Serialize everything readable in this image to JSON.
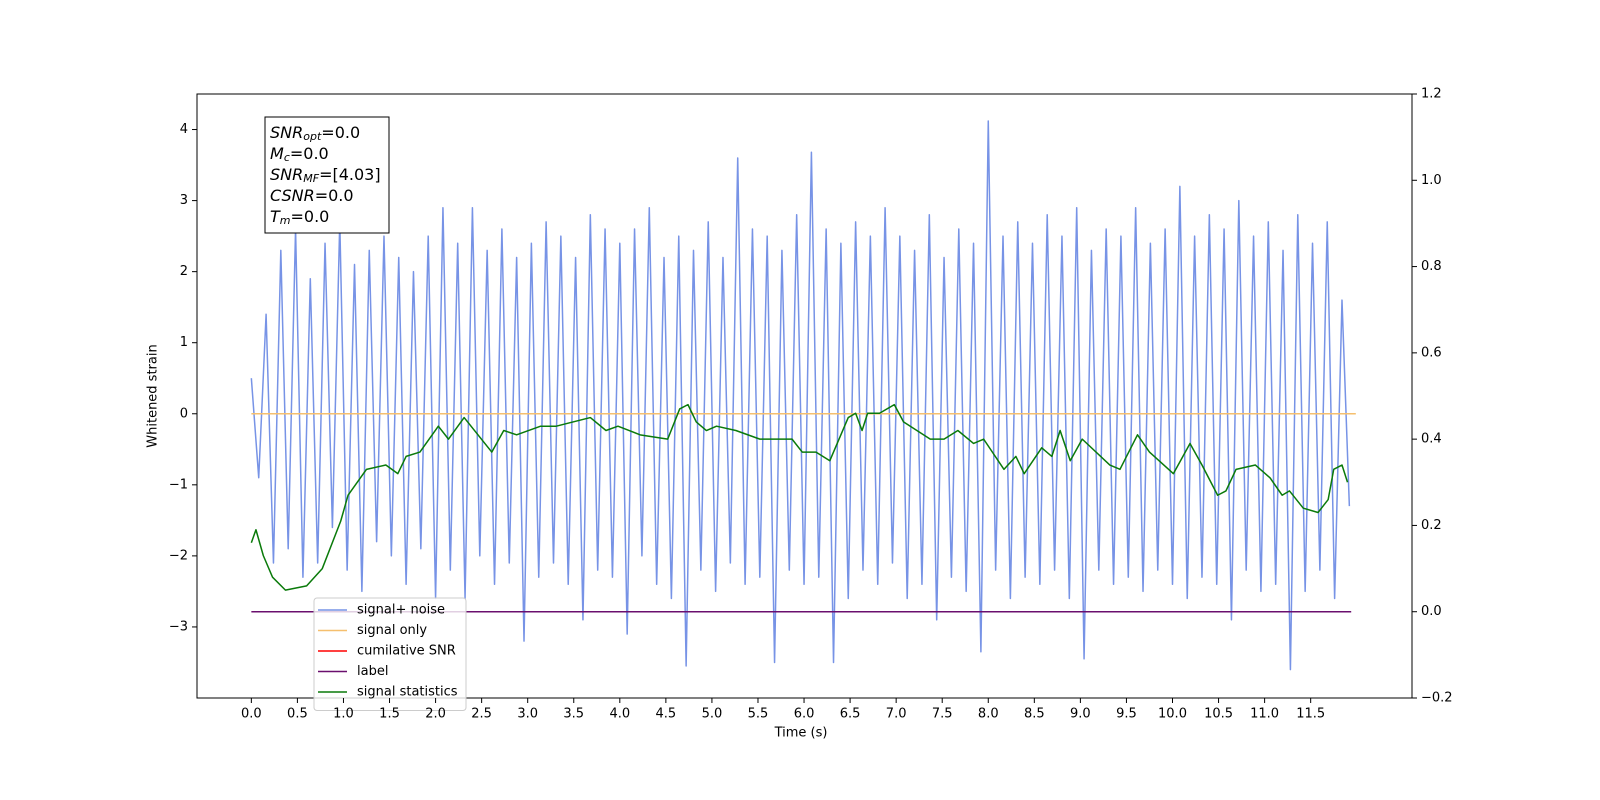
{
  "chart_data": {
    "type": "line",
    "xlabel": "Time (s)",
    "ylabel": "Whitened strain",
    "xlim": [
      -0.59,
      12.6
    ],
    "ylim": [
      -4.0,
      4.5
    ],
    "y2lim": [
      -0.2,
      1.2
    ],
    "xticks": [
      {
        "value": 0,
        "label": "0.0"
      },
      {
        "value": 0.5,
        "label": "0.5"
      },
      {
        "value": 1,
        "label": "1.0"
      },
      {
        "value": 1.5,
        "label": "1.5"
      },
      {
        "value": 2,
        "label": "2.0"
      },
      {
        "value": 2.5,
        "label": "2.5"
      },
      {
        "value": 3,
        "label": "3.0"
      },
      {
        "value": 3.5,
        "label": "3.5"
      },
      {
        "value": 4,
        "label": "4.0"
      },
      {
        "value": 4.5,
        "label": "4.5"
      },
      {
        "value": 5,
        "label": "5.0"
      },
      {
        "value": 5.5,
        "label": "5.5"
      },
      {
        "value": 6,
        "label": "6.0"
      },
      {
        "value": 6.5,
        "label": "6.5"
      },
      {
        "value": 7,
        "label": "7.0"
      },
      {
        "value": 7.5,
        "label": "7.5"
      },
      {
        "value": 8,
        "label": "8.0"
      },
      {
        "value": 8.5,
        "label": "8.5"
      },
      {
        "value": 9,
        "label": "9.0"
      },
      {
        "value": 9.5,
        "label": "9.5"
      },
      {
        "value": 10,
        "label": "10.0"
      },
      {
        "value": 10.5,
        "label": "10.5"
      },
      {
        "value": 11,
        "label": "11.0"
      },
      {
        "value": 11.5,
        "label": "11.5"
      }
    ],
    "yticks": [
      {
        "value": -3,
        "label": "−3"
      },
      {
        "value": -2,
        "label": "−2"
      },
      {
        "value": -1,
        "label": "−1"
      },
      0,
      1,
      2,
      3,
      4
    ],
    "y2ticks": [
      {
        "value": -0.2,
        "label": "−0.2"
      },
      {
        "value": 0,
        "label": "0.0"
      },
      {
        "value": 0.2,
        "label": "0.2"
      },
      {
        "value": 0.4,
        "label": "0.4"
      },
      {
        "value": 0.6,
        "label": "0.6"
      },
      {
        "value": 0.8,
        "label": "0.8"
      },
      {
        "value": 1,
        "label": "1.0"
      },
      {
        "value": 1.2,
        "label": "1.2"
      }
    ],
    "grid": false,
    "legend": "lower left",
    "annotation": [
      {
        "symbol": "SNR",
        "subscript": "opt",
        "text": "=0.0"
      },
      {
        "symbol": "M",
        "subscript": "c",
        "text": "=0.0"
      },
      {
        "symbol": "SNR",
        "subscript": "MF",
        "text": "=[4.03]"
      },
      {
        "symbol": "CSNR",
        "text": "=0.0"
      },
      {
        "symbol": "T",
        "subscript": "m",
        "text": "=0.0"
      }
    ],
    "series": [
      {
        "name": "signal+ noise",
        "color": "#7793e6",
        "x": [
          0,
          0.08,
          0.16,
          0.24,
          0.32,
          0.4,
          0.48,
          0.56,
          0.64,
          0.72,
          0.8,
          0.88,
          0.96,
          1.04,
          1.12,
          1.2,
          1.28,
          1.36,
          1.44,
          1.52,
          1.6,
          1.68,
          1.76,
          1.84,
          1.92,
          2,
          2.08,
          2.16,
          2.24,
          2.32,
          2.4,
          2.48,
          2.56,
          2.64,
          2.72,
          2.8,
          2.88,
          2.96,
          3.04,
          3.12,
          3.2,
          3.28,
          3.36,
          3.44,
          3.52,
          3.6,
          3.68,
          3.76,
          3.84,
          3.92,
          4,
          4.08,
          4.16,
          4.24,
          4.32,
          4.4,
          4.48,
          4.56,
          4.64,
          4.72,
          4.8,
          4.88,
          4.96,
          5.04,
          5.12,
          5.2,
          5.28,
          5.36,
          5.44,
          5.52,
          5.6,
          5.68,
          5.76,
          5.84,
          5.92,
          6,
          6.08,
          6.16,
          6.24,
          6.32,
          6.4,
          6.48,
          6.56,
          6.64,
          6.72,
          6.8,
          6.88,
          6.96,
          7.04,
          7.12,
          7.2,
          7.28,
          7.36,
          7.44,
          7.52,
          7.6,
          7.68,
          7.76,
          7.84,
          7.92,
          8,
          8.08,
          8.16,
          8.24,
          8.32,
          8.4,
          8.48,
          8.56,
          8.64,
          8.72,
          8.8,
          8.88,
          8.96,
          9.04,
          9.12,
          9.2,
          9.28,
          9.36,
          9.44,
          9.52,
          9.6,
          9.68,
          9.76,
          9.84,
          9.92,
          10,
          10.08,
          10.16,
          10.24,
          10.32,
          10.4,
          10.48,
          10.56,
          10.64,
          10.72,
          10.8,
          10.88,
          10.96,
          11.04,
          11.12,
          11.2,
          11.28,
          11.36,
          11.44,
          11.52,
          11.6,
          11.68,
          11.76,
          11.84,
          11.92
        ],
        "values": [
          0.5,
          -0.9,
          1.4,
          -2.1,
          2.3,
          -1.9,
          2.6,
          -2.3,
          1.9,
          -2.1,
          2.4,
          -1.6,
          2.7,
          -2.2,
          2.1,
          -2.5,
          2.3,
          -1.8,
          2.5,
          -2.0,
          2.2,
          -2.4,
          2.0,
          -1.9,
          2.5,
          -2.6,
          2.9,
          -2.2,
          2.4,
          -2.6,
          2.9,
          -2.0,
          2.3,
          -2.4,
          2.6,
          -2.1,
          2.2,
          -3.2,
          2.4,
          -2.3,
          2.7,
          -2.1,
          2.5,
          -2.4,
          2.2,
          -2.9,
          2.8,
          -2.2,
          2.6,
          -2.3,
          2.4,
          -3.1,
          2.6,
          -2.0,
          2.9,
          -2.4,
          2.2,
          -2.6,
          2.5,
          -3.55,
          2.3,
          -2.2,
          2.7,
          -2.5,
          2.2,
          -2.1,
          3.6,
          -2.4,
          2.6,
          -2.3,
          2.5,
          -3.5,
          2.3,
          -2.2,
          2.8,
          -2.4,
          3.68,
          -2.3,
          2.6,
          -3.5,
          2.4,
          -2.6,
          2.7,
          -2.2,
          2.5,
          -2.4,
          2.9,
          -2.1,
          2.5,
          -2.6,
          2.3,
          -2.4,
          2.8,
          -2.9,
          2.2,
          -2.3,
          2.6,
          -2.5,
          2.4,
          -3.35,
          4.12,
          -2.2,
          2.5,
          -2.6,
          2.7,
          -2.3,
          2.4,
          -2.4,
          2.8,
          -2.2,
          2.5,
          -2.6,
          2.9,
          -3.45,
          2.3,
          -2.2,
          2.6,
          -2.4,
          2.5,
          -2.3,
          2.9,
          -2.5,
          2.4,
          -2.2,
          2.6,
          -2.4,
          3.2,
          -2.6,
          2.5,
          -2.3,
          2.8,
          -2.4,
          2.6,
          -2.9,
          3.0,
          -2.2,
          2.5,
          -2.5,
          2.7,
          -2.4,
          2.3,
          -3.6,
          2.8,
          -2.5,
          2.4,
          -2.2,
          2.7,
          -2.6,
          1.6,
          -1.3
        ]
      },
      {
        "name": "signal only",
        "color": "#f5bf6e",
        "x": [
          0,
          11.99
        ],
        "values": [
          0,
          0
        ]
      },
      {
        "name": "cumilative SNR",
        "color": "#ff0000",
        "x": [],
        "values": []
      },
      {
        "name": "label",
        "color": "#6a0f6e",
        "axis": "y2",
        "x": [
          0,
          11.94
        ],
        "values": [
          0,
          0
        ]
      },
      {
        "name": "signal statistics",
        "color": "#0a7a0a",
        "axis": "y2",
        "x": [
          0,
          0.05,
          0.13,
          0.23,
          0.37,
          0.6,
          0.77,
          0.97,
          1.05,
          1.25,
          1.46,
          1.59,
          1.68,
          1.83,
          2.03,
          2.14,
          2.31,
          2.46,
          2.61,
          2.74,
          2.88,
          3.14,
          3.31,
          3.68,
          3.85,
          3.98,
          4.22,
          4.52,
          4.65,
          4.74,
          4.83,
          4.94,
          5.05,
          5.26,
          5.52,
          5.87,
          5.98,
          6.13,
          6.28,
          6.48,
          6.56,
          6.63,
          6.69,
          6.82,
          6.98,
          7.08,
          7.37,
          7.52,
          7.67,
          7.84,
          7.95,
          8.17,
          8.3,
          8.39,
          8.58,
          8.69,
          8.78,
          8.89,
          9.02,
          9.32,
          9.43,
          9.62,
          9.75,
          10.01,
          10.19,
          10.32,
          10.49,
          10.58,
          10.69,
          10.9,
          11.06,
          11.19,
          11.27,
          11.42,
          11.58,
          11.69,
          11.75,
          11.84,
          11.9
        ],
        "values": [
          0.16,
          0.19,
          0.13,
          0.08,
          0.05,
          0.06,
          0.1,
          0.21,
          0.27,
          0.33,
          0.34,
          0.32,
          0.36,
          0.37,
          0.43,
          0.4,
          0.45,
          0.41,
          0.37,
          0.42,
          0.41,
          0.43,
          0.43,
          0.45,
          0.42,
          0.43,
          0.41,
          0.4,
          0.47,
          0.48,
          0.44,
          0.42,
          0.43,
          0.42,
          0.4,
          0.4,
          0.37,
          0.37,
          0.35,
          0.45,
          0.46,
          0.42,
          0.46,
          0.46,
          0.48,
          0.44,
          0.4,
          0.4,
          0.42,
          0.39,
          0.4,
          0.33,
          0.36,
          0.32,
          0.38,
          0.36,
          0.42,
          0.35,
          0.4,
          0.34,
          0.33,
          0.41,
          0.37,
          0.32,
          0.39,
          0.34,
          0.27,
          0.28,
          0.33,
          0.34,
          0.31,
          0.27,
          0.28,
          0.24,
          0.23,
          0.26,
          0.33,
          0.34,
          0.3
        ]
      }
    ]
  }
}
